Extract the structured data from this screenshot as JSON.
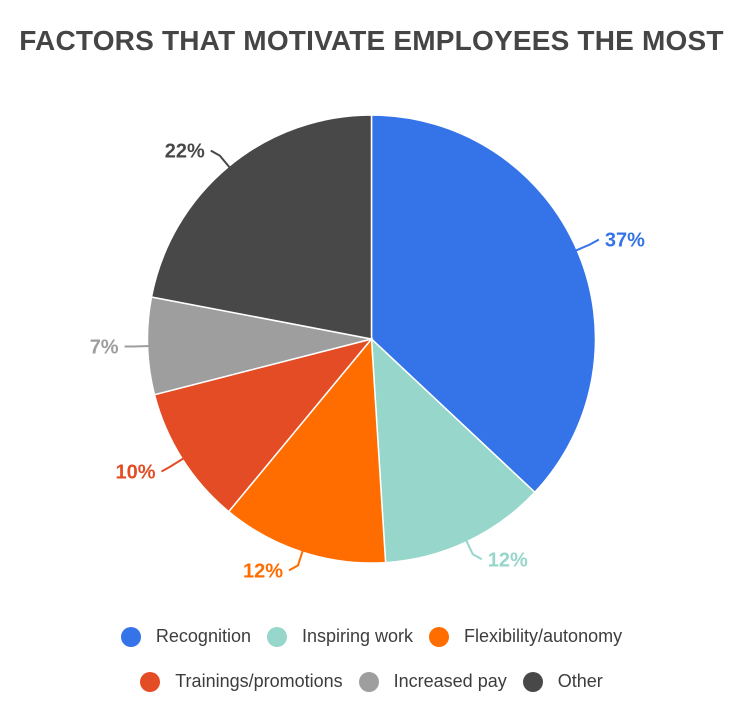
{
  "page": {
    "background": "#ffffff",
    "title_color": "#454545",
    "legend_text_color": "#3d3d3d"
  },
  "chart_data": {
    "type": "pie",
    "title": "FACTORS THAT MOTIVATE EMPLOYEES THE MOST",
    "direction": "clockwise",
    "start_angle_deg": 0,
    "legend_position": "bottom",
    "grid": false,
    "slices": [
      {
        "label": "Recognition",
        "value": 37,
        "value_label": "37%",
        "color": "#3573e9"
      },
      {
        "label": "Inspiring work",
        "value": 12,
        "value_label": "12%",
        "color": "#96d6cb"
      },
      {
        "label": "Flexibility/autonomy",
        "value": 12,
        "value_label": "12%",
        "color": "#ff6d00"
      },
      {
        "label": "Trainings/promotions",
        "value": 10,
        "value_label": "10%",
        "color": "#e44c25"
      },
      {
        "label": "Increased pay",
        "value": 7,
        "value_label": "7%",
        "color": "#9e9e9e"
      },
      {
        "label": "Other",
        "value": 22,
        "value_label": "22%",
        "color": "#484848"
      }
    ],
    "legend_rows": [
      [
        "Recognition",
        "Inspiring work",
        "Flexibility/autonomy"
      ],
      [
        "Trainings/promotions",
        "Increased pay",
        "Other"
      ]
    ]
  }
}
